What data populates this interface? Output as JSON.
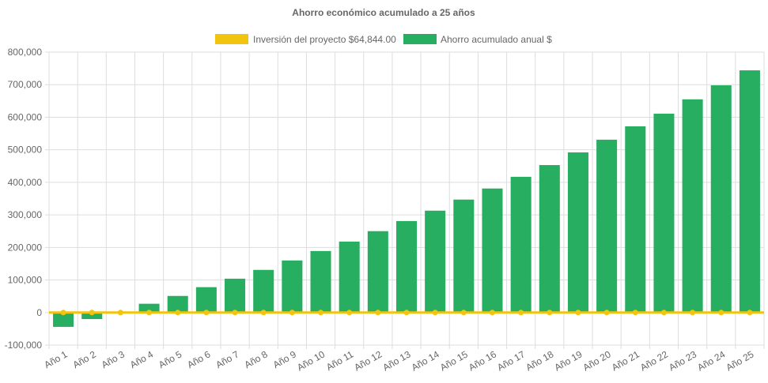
{
  "chart_data": {
    "type": "bar",
    "title": "Ahorro económico acumulado a 25 años",
    "legend_position": "top",
    "grid": true,
    "categories": [
      "Año 1",
      "Año 2",
      "Año 3",
      "Año 4",
      "Año 5",
      "Año 6",
      "Año 7",
      "Año 8",
      "Año 9",
      "Año 10",
      "Año 11",
      "Año 12",
      "Año 13",
      "Año 14",
      "Año 15",
      "Año 16",
      "Año 17",
      "Año 18",
      "Año 19",
      "Año 20",
      "Año 21",
      "Año 22",
      "Año 23",
      "Año 24",
      "Año 25"
    ],
    "ylim": [
      -100000,
      800000
    ],
    "yticks": [
      "-100,000",
      "0",
      "100,000",
      "200,000",
      "300,000",
      "400,000",
      "500,000",
      "600,000",
      "700,000",
      "800,000"
    ],
    "series": [
      {
        "name": "Inversión del proyecto $64,844.00",
        "type": "line",
        "color": "#f1c40f",
        "values": [
          0,
          0,
          0,
          0,
          0,
          0,
          0,
          0,
          0,
          0,
          0,
          0,
          0,
          0,
          0,
          0,
          0,
          0,
          0,
          0,
          0,
          0,
          0,
          0,
          0
        ]
      },
      {
        "name": "Ahorro acumulado anual $",
        "type": "bar",
        "color": "#27ae60",
        "values": [
          -44000,
          -20000,
          0,
          27000,
          51000,
          78000,
          104000,
          131000,
          160000,
          189000,
          218000,
          250000,
          281000,
          313000,
          347000,
          381000,
          417000,
          453000,
          492000,
          531000,
          572000,
          611000,
          655000,
          698000,
          744000
        ]
      }
    ]
  }
}
